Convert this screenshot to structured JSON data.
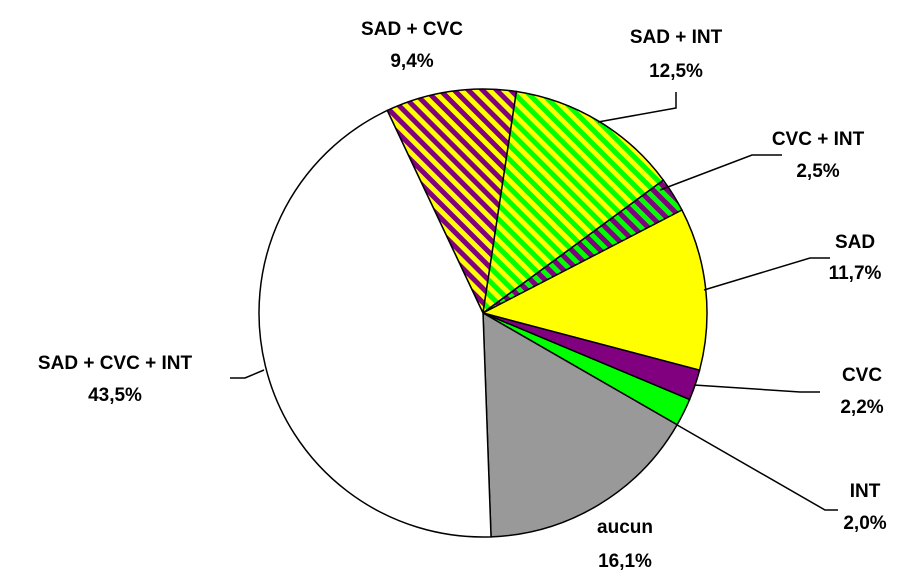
{
  "chart_data": {
    "type": "pie",
    "categories": [
      "SAD + CVC",
      "SAD + INT",
      "CVC + INT",
      "SAD",
      "CVC",
      "INT",
      "aucun",
      "SAD + CVC + INT"
    ],
    "values": [
      9.4,
      12.5,
      2.5,
      11.7,
      2.2,
      2.0,
      16.1,
      43.5
    ],
    "value_labels": [
      "9,4%",
      "12,5%",
      "2,5%",
      "11,7%",
      "2,2%",
      "2,0%",
      "16,1%",
      "43,5%"
    ],
    "colors": [
      "#800080",
      "#00ff00",
      "#800080",
      "#ffff00",
      "#800080",
      "#00ff00",
      "#999999",
      "#ffffff"
    ],
    "hatch_colors": [
      "#ffff00",
      "#ffff00",
      "#00ff00",
      null,
      null,
      null,
      null,
      null
    ]
  }
}
